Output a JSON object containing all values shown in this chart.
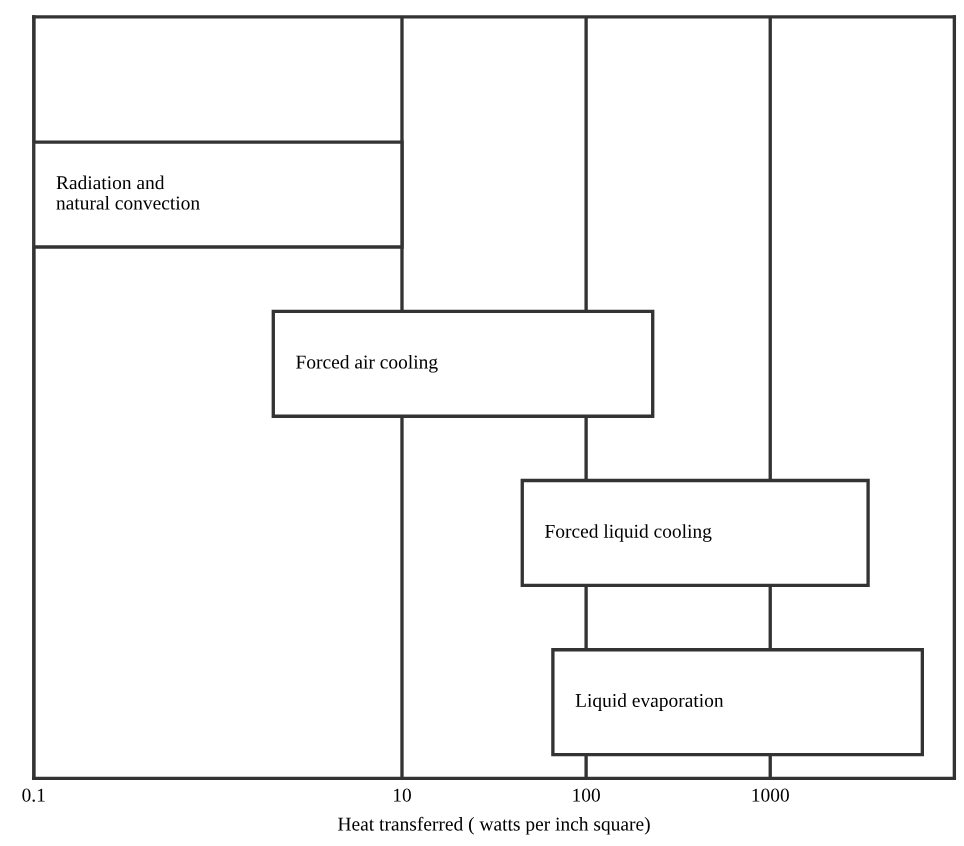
{
  "chart_data": {
    "type": "bar",
    "orientation": "horizontal",
    "categories": [
      "Radiation and\nnatural convection",
      "Forced air cooling",
      "Forced liquid cooling",
      "Liquid evaporation"
    ],
    "base": [
      0.1,
      2,
      45,
      66
    ],
    "values": [
      9.9,
      228,
      3355,
      6634
    ],
    "color": "#ffffff",
    "log": "x",
    "xlim": [
      0.1,
      10000
    ],
    "xticks": [
      0.1,
      10,
      100,
      1000
    ],
    "xlabel": "Heat transferred ( watts per inch square)",
    "grid": "x",
    "tick_labels": "x"
  }
}
